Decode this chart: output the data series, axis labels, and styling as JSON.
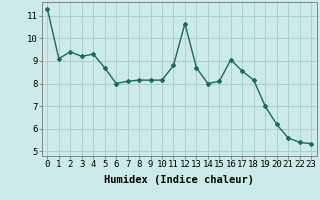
{
  "x": [
    0,
    1,
    2,
    3,
    4,
    5,
    6,
    7,
    8,
    9,
    10,
    11,
    12,
    13,
    14,
    15,
    16,
    17,
    18,
    19,
    20,
    21,
    22,
    23
  ],
  "y": [
    11.3,
    9.1,
    9.4,
    9.2,
    9.3,
    8.7,
    8.0,
    8.1,
    8.15,
    8.15,
    8.15,
    8.8,
    10.65,
    8.7,
    8.0,
    8.1,
    9.05,
    8.55,
    8.15,
    7.0,
    6.2,
    5.6,
    5.4,
    5.35
  ],
  "xlabel": "Humidex (Indice chaleur)",
  "ylim": [
    4.8,
    11.6
  ],
  "xlim": [
    -0.5,
    23.5
  ],
  "yticks": [
    5,
    6,
    7,
    8,
    9,
    10,
    11
  ],
  "xticks": [
    0,
    1,
    2,
    3,
    4,
    5,
    6,
    7,
    8,
    9,
    10,
    11,
    12,
    13,
    14,
    15,
    16,
    17,
    18,
    19,
    20,
    21,
    22,
    23
  ],
  "line_color": "#1a6b5a",
  "marker": "D",
  "marker_size": 2.0,
  "bg_color": "#cceae8",
  "grid_color": "#aacfcc",
  "tick_label_fontsize": 6.5,
  "xlabel_fontsize": 7.5
}
